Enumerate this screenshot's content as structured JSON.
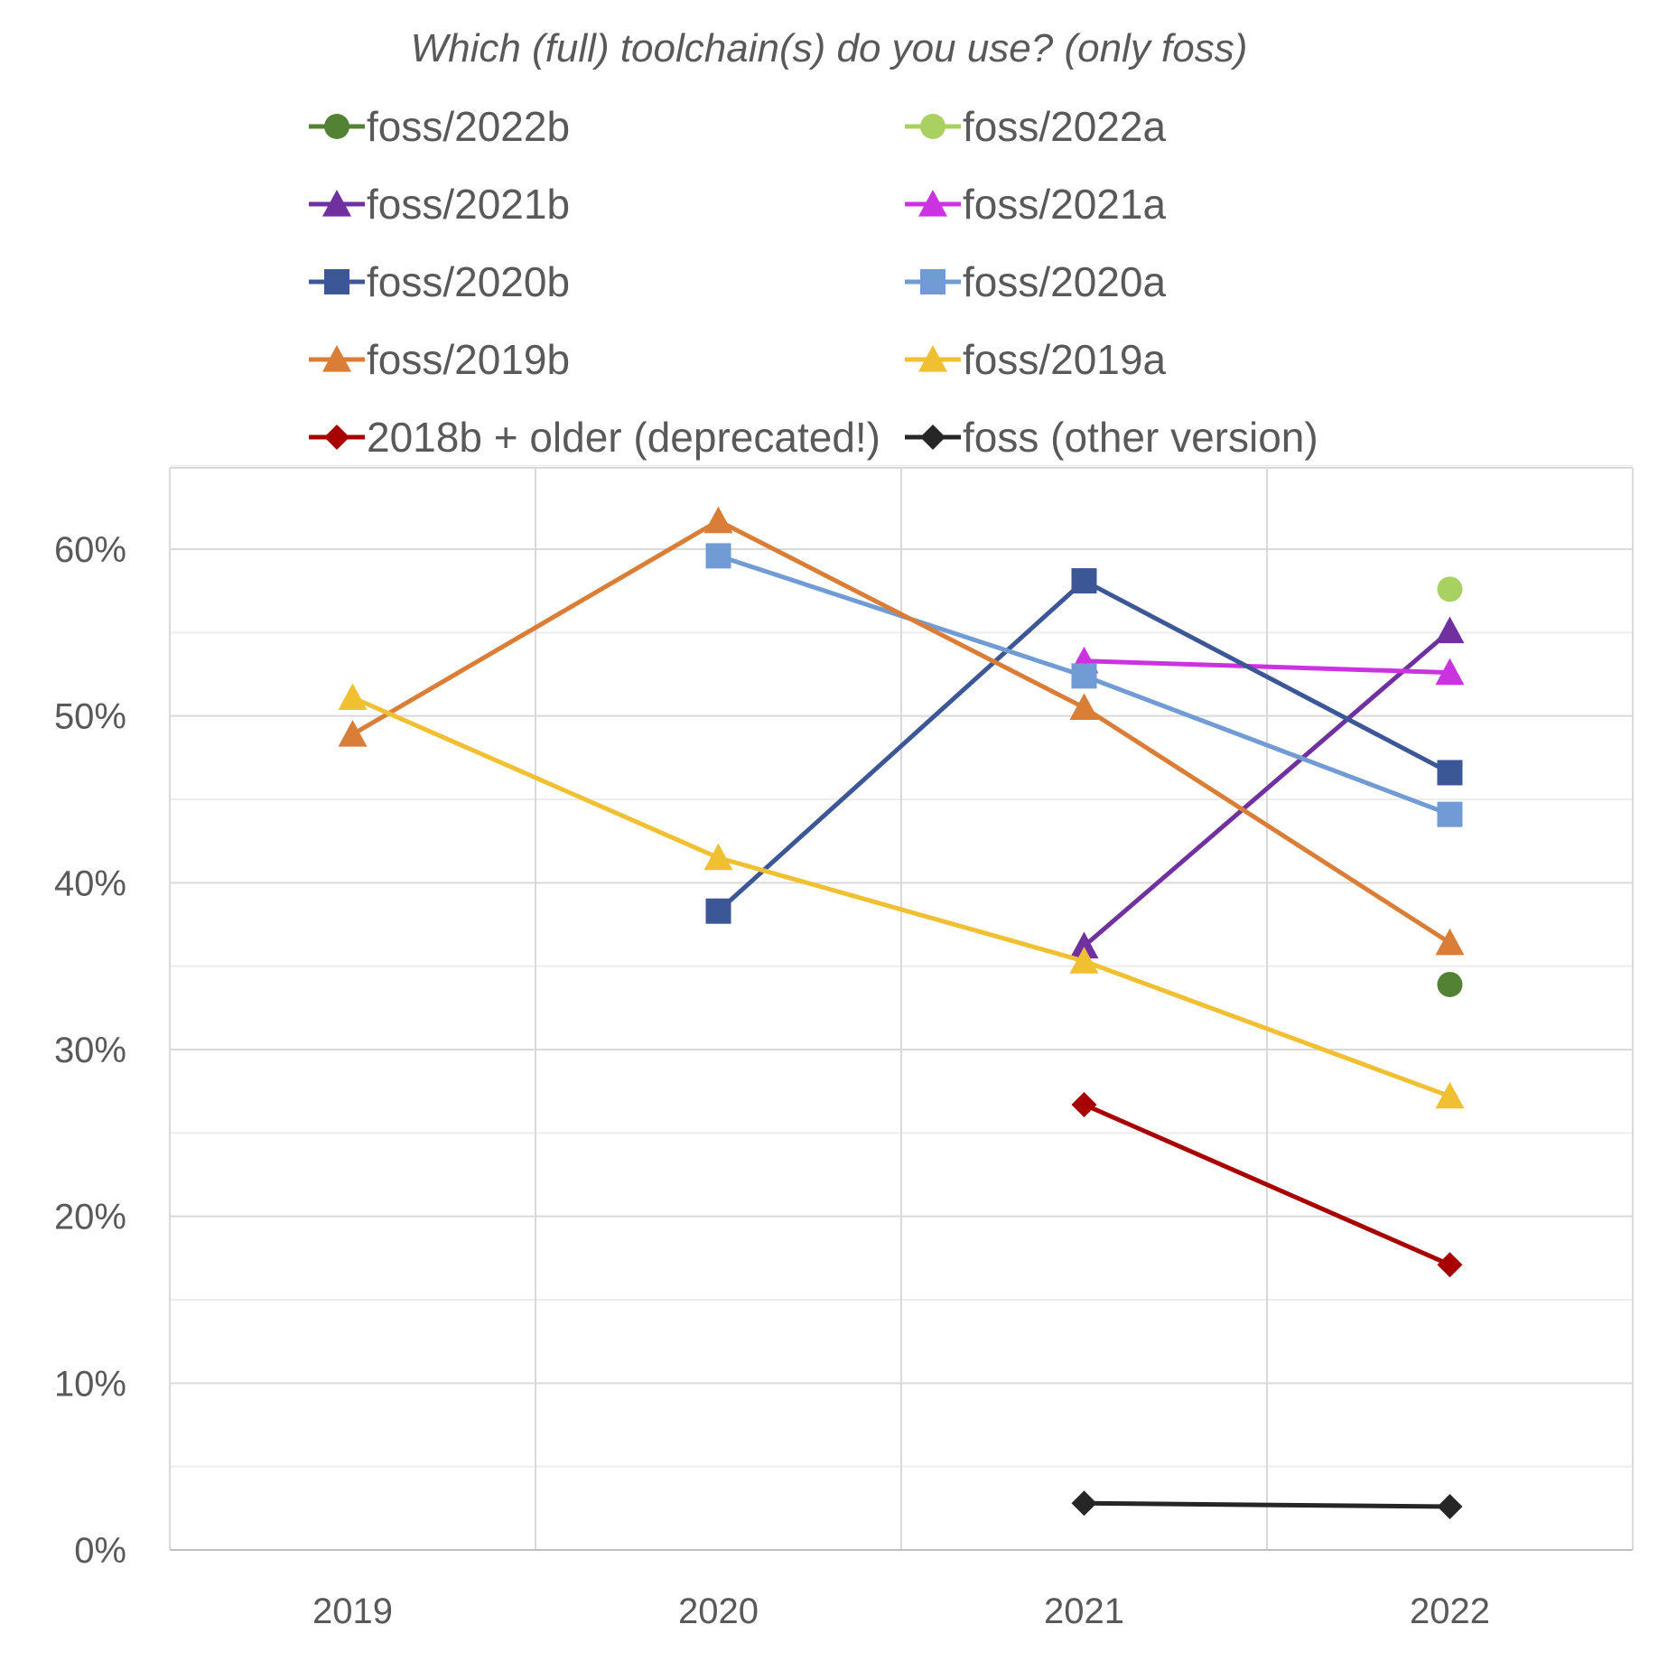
{
  "chart_data": {
    "type": "line",
    "title": "Which (full) toolchain(s) do you use? (only foss)",
    "xlabel": "",
    "ylabel": "",
    "categories": [
      "2019",
      "2020",
      "2021",
      "2022"
    ],
    "ylim": [
      0,
      0.65
    ],
    "y_ticks": [
      0,
      0.1,
      0.2,
      0.3,
      0.4,
      0.5,
      0.6
    ],
    "y_tick_labels": [
      "0%",
      "10%",
      "20%",
      "30%",
      "40%",
      "50%",
      "60%"
    ],
    "grid": true,
    "legend_position": "top",
    "series": [
      {
        "name": "foss/2022b",
        "color": "#548235",
        "marker": "circle",
        "values": [
          null,
          null,
          null,
          0.339
        ]
      },
      {
        "name": "foss/2022a",
        "color": "#a9d161",
        "marker": "circle",
        "values": [
          null,
          null,
          null,
          0.576
        ]
      },
      {
        "name": "foss/2021b",
        "color": "#7030a0",
        "marker": "triangle",
        "values": [
          null,
          null,
          0.362,
          0.551
        ]
      },
      {
        "name": "foss/2021a",
        "color": "#cc33e0",
        "marker": "triangle",
        "values": [
          null,
          null,
          0.533,
          0.526
        ]
      },
      {
        "name": "foss/2020b",
        "color": "#3c5795",
        "marker": "square",
        "values": [
          null,
          0.383,
          0.581,
          0.466
        ]
      },
      {
        "name": "foss/2020a",
        "color": "#719bd4",
        "marker": "square",
        "values": [
          null,
          0.596,
          0.524,
          0.441
        ]
      },
      {
        "name": "foss/2019b",
        "color": "#d97d37",
        "marker": "triangle",
        "values": [
          0.489,
          0.617,
          0.505,
          0.364
        ]
      },
      {
        "name": "foss/2019a",
        "color": "#f0bf32",
        "marker": "triangle",
        "values": [
          0.511,
          0.415,
          0.353,
          0.272
        ]
      },
      {
        "name": "2018b + older (deprecated!)",
        "color": "#a80000",
        "marker": "diamond",
        "values": [
          null,
          null,
          0.267,
          0.171
        ]
      },
      {
        "name": "foss (other version)",
        "color": "#262626",
        "marker": "diamond",
        "values": [
          null,
          null,
          0.028,
          0.026
        ]
      }
    ]
  }
}
